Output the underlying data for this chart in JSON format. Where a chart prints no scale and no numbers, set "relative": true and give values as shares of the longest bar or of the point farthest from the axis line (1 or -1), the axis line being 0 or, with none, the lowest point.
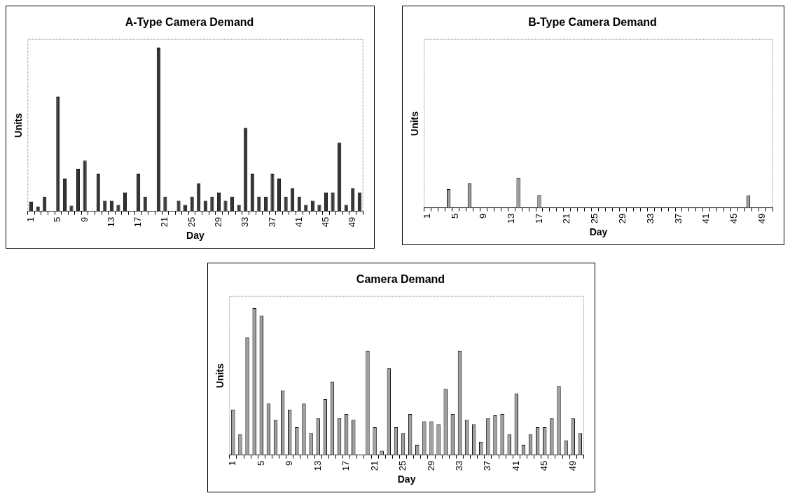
{
  "chart_data": [
    {
      "type": "bar",
      "title": "A-Type Camera Demand",
      "xlabel": "Day",
      "ylabel": "Units",
      "relative": true,
      "legend": false,
      "grid": false,
      "color": "#333333",
      "categories": [
        "1",
        null,
        null,
        null,
        "5",
        null,
        null,
        null,
        "9",
        null,
        null,
        null,
        "13",
        null,
        null,
        null,
        "17",
        null,
        null,
        null,
        "21",
        null,
        null,
        null,
        "25",
        null,
        null,
        null,
        "29",
        null,
        null,
        null,
        "33",
        null,
        null,
        null,
        "37",
        null,
        null,
        null,
        "41",
        null,
        null,
        null,
        "45",
        null,
        null,
        null,
        "49",
        null
      ],
      "values": [
        0.06,
        0.03,
        0.09,
        0,
        0.7,
        0.2,
        0.035,
        0.26,
        0.31,
        0,
        0.23,
        0.065,
        0.065,
        0.04,
        0.115,
        0,
        0.23,
        0.09,
        0,
        1,
        0.09,
        0,
        0.065,
        0.04,
        0.09,
        0.17,
        0.065,
        0.09,
        0.115,
        0.065,
        0.09,
        0.04,
        0.51,
        0.23,
        0.09,
        0.09,
        0.23,
        0.2,
        0.09,
        0.14,
        0.09,
        0.04,
        0.065,
        0.04,
        0.115,
        0.115,
        0.42,
        0.04,
        0.14,
        0.115
      ]
    },
    {
      "type": "bar",
      "title": "B-Type Camera Demand",
      "xlabel": "Day",
      "ylabel": "Units",
      "relative": true,
      "legend": false,
      "grid": false,
      "color": "#a0a0a0",
      "categories": [
        "1",
        null,
        null,
        null,
        "5",
        null,
        null,
        null,
        "9",
        null,
        null,
        null,
        "13",
        null,
        null,
        null,
        "17",
        null,
        null,
        null,
        "21",
        null,
        null,
        null,
        "25",
        null,
        null,
        null,
        "29",
        null,
        null,
        null,
        "33",
        null,
        null,
        null,
        "37",
        null,
        null,
        null,
        "41",
        null,
        null,
        null,
        "45",
        null,
        null,
        null,
        "49",
        null
      ],
      "values": [
        0,
        0,
        0,
        0.62,
        0,
        0,
        0.81,
        0,
        0,
        0,
        0,
        0,
        0,
        1,
        0,
        0,
        0.42,
        0,
        0,
        0,
        0,
        0,
        0,
        0,
        0,
        0,
        0,
        0,
        0,
        0,
        0,
        0,
        0,
        0,
        0,
        0,
        0,
        0,
        0,
        0,
        0,
        0,
        0,
        0,
        0,
        0,
        0.41,
        0,
        0,
        0
      ]
    },
    {
      "type": "bar",
      "title": "Camera Demand",
      "xlabel": "Day",
      "ylabel": "Units",
      "relative": true,
      "legend": false,
      "grid": false,
      "color": "#a0a0a0",
      "categories": [
        "1",
        null,
        null,
        null,
        "5",
        null,
        null,
        null,
        "9",
        null,
        null,
        null,
        "13",
        null,
        null,
        null,
        "17",
        null,
        null,
        null,
        "21",
        null,
        null,
        null,
        "25",
        null,
        null,
        null,
        "29",
        null,
        null,
        null,
        "33",
        null,
        null,
        null,
        "37",
        null,
        null,
        null,
        "41",
        null,
        null,
        null,
        "45",
        null,
        null,
        null,
        "49",
        null
      ],
      "values": [
        0.31,
        0.14,
        0.8,
        1,
        0.95,
        0.35,
        0.24,
        0.44,
        0.31,
        0.19,
        0.35,
        0.15,
        0.25,
        0.38,
        0.5,
        0.25,
        0.28,
        0.24,
        0,
        0.71,
        0.19,
        0.03,
        0.59,
        0.19,
        0.15,
        0.28,
        0.07,
        0.23,
        0.23,
        0.21,
        0.45,
        0.28,
        0.71,
        0.24,
        0.21,
        0.09,
        0.25,
        0.27,
        0.28,
        0.14,
        0.42,
        0.07,
        0.14,
        0.19,
        0.19,
        0.25,
        0.47,
        0.1,
        0.25,
        0.15
      ]
    }
  ]
}
